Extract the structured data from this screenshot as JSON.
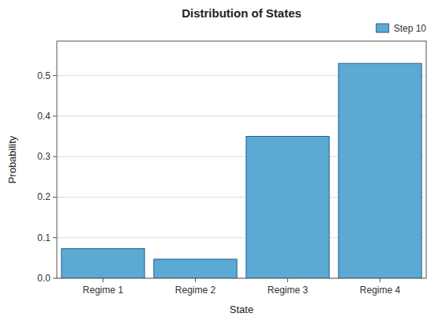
{
  "chart_data": {
    "type": "bar",
    "title": "Distribution of States",
    "xlabel": "State",
    "ylabel": "Probability",
    "categories": [
      "Regime 1",
      "Regime 2",
      "Regime 3",
      "Regime 4"
    ],
    "series": [
      {
        "name": "Step 10",
        "color": "#5BAAD4",
        "values": [
          0.073,
          0.047,
          0.35,
          0.53
        ]
      }
    ],
    "ylim": [
      0,
      0.585
    ],
    "yticks": [
      {
        "value": 0,
        "label": "0.0"
      },
      0.1,
      0.2,
      0.3,
      0.4,
      0.5
    ],
    "grid": true,
    "legend": "upper right"
  }
}
